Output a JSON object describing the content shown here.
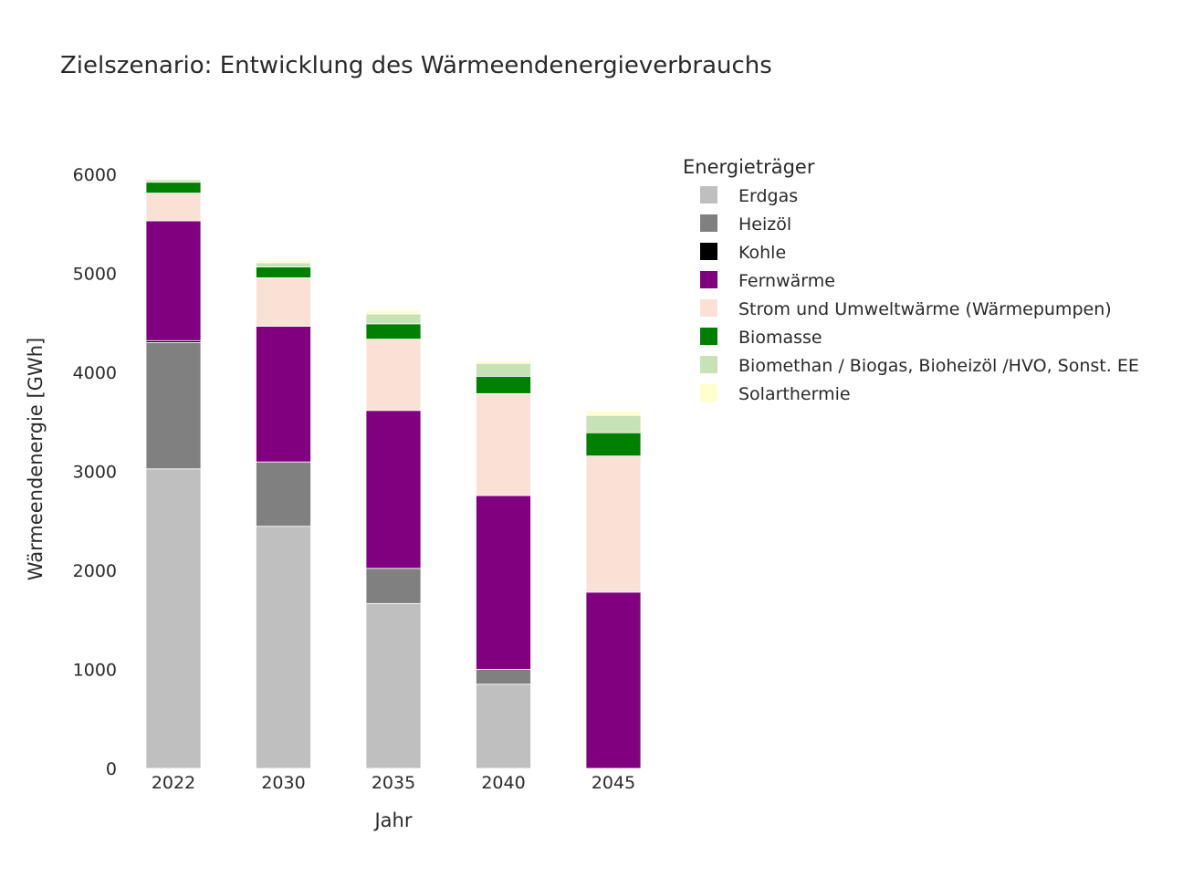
{
  "chart_data": {
    "type": "bar",
    "stacked": true,
    "title": "Zielszenario: Entwicklung des Wärmeendenergieverbrauchs",
    "xlabel": "Jahr",
    "ylabel": "Wärmeendenergie [GWh]",
    "ylim": [
      0,
      6000
    ],
    "yticks": [
      0,
      1000,
      2000,
      3000,
      4000,
      5000,
      6000
    ],
    "grid": false,
    "legend_title": "Energieträger",
    "legend_position": "right",
    "categories": [
      "2022",
      "2030",
      "2035",
      "2040",
      "2045"
    ],
    "series": [
      {
        "name": "Erdgas",
        "color": "#bfbfbf",
        "values": [
          3025,
          2445,
          1665,
          850,
          0
        ]
      },
      {
        "name": "Heizöl",
        "color": "#808080",
        "values": [
          1275,
          650,
          355,
          150,
          0
        ]
      },
      {
        "name": "Kohle",
        "color": "#000000",
        "values": [
          20,
          0,
          0,
          0,
          0
        ]
      },
      {
        "name": "Fernwärme",
        "color": "#800080",
        "values": [
          1210,
          1370,
          1595,
          1755,
          1780
        ]
      },
      {
        "name": "Strom und Umweltwärme (Wärmepumpen)",
        "color": "#fae1d6",
        "values": [
          280,
          490,
          720,
          1030,
          1375
        ]
      },
      {
        "name": "Biomasse",
        "color": "#008000",
        "values": [
          110,
          110,
          155,
          175,
          235
        ]
      },
      {
        "name": "Biomethan / Biogas, Bioheizöl /HVO, Sonst. EE",
        "color": "#c6e2b6",
        "values": [
          25,
          40,
          100,
          130,
          175
        ]
      },
      {
        "name": "Solarthermie",
        "color": "#ffffcc",
        "values": [
          10,
          25,
          35,
          25,
          45
        ]
      }
    ]
  }
}
